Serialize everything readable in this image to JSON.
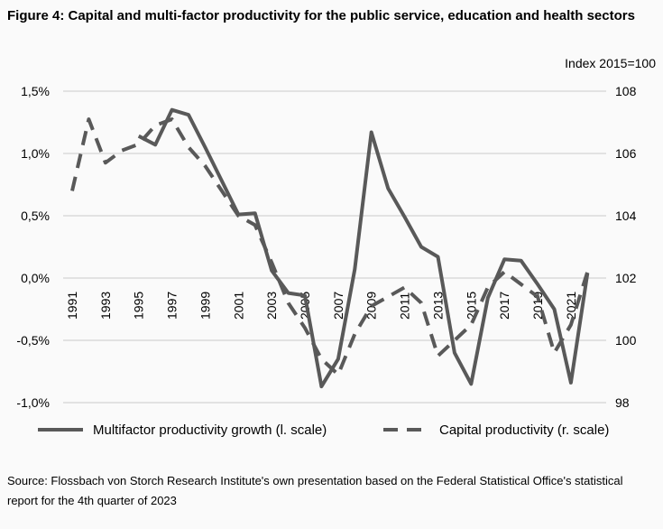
{
  "chart_data": {
    "type": "line",
    "title": "Figure 4: Capital and multi-factor productivity for the public service, education and health sectors",
    "right_axis_title": "Index 2015=100",
    "source": "Source: Flossbach von Storch Research Institute's own presentation based on the Federal Statistical Office's statistical report for the 4th quarter of 2023",
    "x_ticks": [
      "1991",
      "1993",
      "1995",
      "1997",
      "1999",
      "2001",
      "2003",
      "2005",
      "2007",
      "2009",
      "2011",
      "2013",
      "2015",
      "2017",
      "2019",
      "2021"
    ],
    "y_left": {
      "ticks": [
        "1,5%",
        "1,0%",
        "0,5%",
        "0,0%",
        "-0,5%",
        "-1,0%"
      ],
      "range": [
        -1.0,
        1.5
      ]
    },
    "y_right": {
      "ticks": [
        "108",
        "106",
        "104",
        "102",
        "100",
        "98"
      ],
      "range": [
        98,
        108
      ]
    },
    "grid": true,
    "legend_position": "bottom",
    "color": "#595959",
    "series": [
      {
        "name": "Multifactor productivity growth (l. scale)",
        "axis": "left",
        "style": "solid",
        "x": [
          1995,
          1996,
          1997,
          1998,
          1999,
          2000,
          2001,
          2002,
          2003,
          2004,
          2005,
          2006,
          2007,
          2008,
          2009,
          2010,
          2011,
          2012,
          2013,
          2014,
          2015,
          2016,
          2017,
          2018,
          2019,
          2020,
          2021,
          2022
        ],
        "values": [
          1.14,
          1.07,
          1.35,
          1.31,
          1.05,
          0.78,
          0.51,
          0.52,
          0.06,
          -0.12,
          -0.14,
          -0.87,
          -0.65,
          0.07,
          1.17,
          0.72,
          0.49,
          0.25,
          0.17,
          -0.6,
          -0.85,
          -0.16,
          0.15,
          0.14,
          -0.05,
          -0.25,
          -0.84,
          0.04
        ]
      },
      {
        "name": "Capital productivity (r. scale)",
        "axis": "right",
        "style": "dashed",
        "x": [
          1991,
          1992,
          1993,
          1994,
          1995,
          1996,
          1997,
          1998,
          1999,
          2000,
          2001,
          2002,
          2003,
          2004,
          2005,
          2006,
          2007,
          2008,
          2009,
          2010,
          2011,
          2012,
          2013,
          2014,
          2015,
          2016,
          2017,
          2018,
          2019,
          2020,
          2021,
          2022
        ],
        "values": [
          104.8,
          107.1,
          105.7,
          106.1,
          106.3,
          106.9,
          107.1,
          106.2,
          105.6,
          104.8,
          104.0,
          103.7,
          102.5,
          101.2,
          100.4,
          99.4,
          98.9,
          100.2,
          101.1,
          101.4,
          101.7,
          101.2,
          99.5,
          100.0,
          100.5,
          101.7,
          102.2,
          101.8,
          101.4,
          99.6,
          100.5,
          102.2
        ]
      }
    ]
  }
}
